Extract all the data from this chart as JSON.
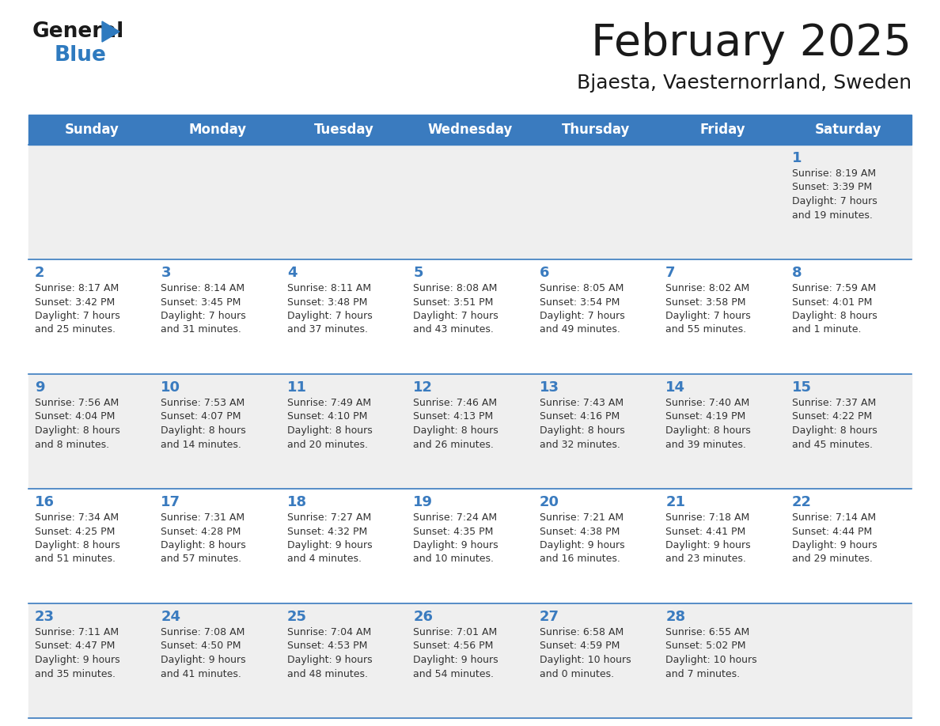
{
  "title": "February 2025",
  "subtitle": "Bjaesta, Vaesternorrland, Sweden",
  "days_of_week": [
    "Sunday",
    "Monday",
    "Tuesday",
    "Wednesday",
    "Thursday",
    "Friday",
    "Saturday"
  ],
  "header_bg": "#3a7bbf",
  "header_text": "#ffffff",
  "cell_bg_odd": "#efefef",
  "cell_bg_even": "#ffffff",
  "border_color": "#3a7bbf",
  "title_color": "#1a1a1a",
  "subtitle_color": "#1a1a1a",
  "day_text_color": "#3a7bbf",
  "cell_text_color": "#333333",
  "logo_general_color": "#1a1a1a",
  "logo_blue_color": "#2e7abf",
  "calendar_data": [
    {
      "day": 1,
      "week": 0,
      "col": 6,
      "sunrise": "8:19 AM",
      "sunset": "3:39 PM",
      "daylight_hours": 7,
      "daylight_minutes": 19
    },
    {
      "day": 2,
      "week": 1,
      "col": 0,
      "sunrise": "8:17 AM",
      "sunset": "3:42 PM",
      "daylight_hours": 7,
      "daylight_minutes": 25
    },
    {
      "day": 3,
      "week": 1,
      "col": 1,
      "sunrise": "8:14 AM",
      "sunset": "3:45 PM",
      "daylight_hours": 7,
      "daylight_minutes": 31
    },
    {
      "day": 4,
      "week": 1,
      "col": 2,
      "sunrise": "8:11 AM",
      "sunset": "3:48 PM",
      "daylight_hours": 7,
      "daylight_minutes": 37
    },
    {
      "day": 5,
      "week": 1,
      "col": 3,
      "sunrise": "8:08 AM",
      "sunset": "3:51 PM",
      "daylight_hours": 7,
      "daylight_minutes": 43
    },
    {
      "day": 6,
      "week": 1,
      "col": 4,
      "sunrise": "8:05 AM",
      "sunset": "3:54 PM",
      "daylight_hours": 7,
      "daylight_minutes": 49
    },
    {
      "day": 7,
      "week": 1,
      "col": 5,
      "sunrise": "8:02 AM",
      "sunset": "3:58 PM",
      "daylight_hours": 7,
      "daylight_minutes": 55
    },
    {
      "day": 8,
      "week": 1,
      "col": 6,
      "sunrise": "7:59 AM",
      "sunset": "4:01 PM",
      "daylight_hours": 8,
      "daylight_minutes": 1
    },
    {
      "day": 9,
      "week": 2,
      "col": 0,
      "sunrise": "7:56 AM",
      "sunset": "4:04 PM",
      "daylight_hours": 8,
      "daylight_minutes": 8
    },
    {
      "day": 10,
      "week": 2,
      "col": 1,
      "sunrise": "7:53 AM",
      "sunset": "4:07 PM",
      "daylight_hours": 8,
      "daylight_minutes": 14
    },
    {
      "day": 11,
      "week": 2,
      "col": 2,
      "sunrise": "7:49 AM",
      "sunset": "4:10 PM",
      "daylight_hours": 8,
      "daylight_minutes": 20
    },
    {
      "day": 12,
      "week": 2,
      "col": 3,
      "sunrise": "7:46 AM",
      "sunset": "4:13 PM",
      "daylight_hours": 8,
      "daylight_minutes": 26
    },
    {
      "day": 13,
      "week": 2,
      "col": 4,
      "sunrise": "7:43 AM",
      "sunset": "4:16 PM",
      "daylight_hours": 8,
      "daylight_minutes": 32
    },
    {
      "day": 14,
      "week": 2,
      "col": 5,
      "sunrise": "7:40 AM",
      "sunset": "4:19 PM",
      "daylight_hours": 8,
      "daylight_minutes": 39
    },
    {
      "day": 15,
      "week": 2,
      "col": 6,
      "sunrise": "7:37 AM",
      "sunset": "4:22 PM",
      "daylight_hours": 8,
      "daylight_minutes": 45
    },
    {
      "day": 16,
      "week": 3,
      "col": 0,
      "sunrise": "7:34 AM",
      "sunset": "4:25 PM",
      "daylight_hours": 8,
      "daylight_minutes": 51
    },
    {
      "day": 17,
      "week": 3,
      "col": 1,
      "sunrise": "7:31 AM",
      "sunset": "4:28 PM",
      "daylight_hours": 8,
      "daylight_minutes": 57
    },
    {
      "day": 18,
      "week": 3,
      "col": 2,
      "sunrise": "7:27 AM",
      "sunset": "4:32 PM",
      "daylight_hours": 9,
      "daylight_minutes": 4
    },
    {
      "day": 19,
      "week": 3,
      "col": 3,
      "sunrise": "7:24 AM",
      "sunset": "4:35 PM",
      "daylight_hours": 9,
      "daylight_minutes": 10
    },
    {
      "day": 20,
      "week": 3,
      "col": 4,
      "sunrise": "7:21 AM",
      "sunset": "4:38 PM",
      "daylight_hours": 9,
      "daylight_minutes": 16
    },
    {
      "day": 21,
      "week": 3,
      "col": 5,
      "sunrise": "7:18 AM",
      "sunset": "4:41 PM",
      "daylight_hours": 9,
      "daylight_minutes": 23
    },
    {
      "day": 22,
      "week": 3,
      "col": 6,
      "sunrise": "7:14 AM",
      "sunset": "4:44 PM",
      "daylight_hours": 9,
      "daylight_minutes": 29
    },
    {
      "day": 23,
      "week": 4,
      "col": 0,
      "sunrise": "7:11 AM",
      "sunset": "4:47 PM",
      "daylight_hours": 9,
      "daylight_minutes": 35
    },
    {
      "day": 24,
      "week": 4,
      "col": 1,
      "sunrise": "7:08 AM",
      "sunset": "4:50 PM",
      "daylight_hours": 9,
      "daylight_minutes": 41
    },
    {
      "day": 25,
      "week": 4,
      "col": 2,
      "sunrise": "7:04 AM",
      "sunset": "4:53 PM",
      "daylight_hours": 9,
      "daylight_minutes": 48
    },
    {
      "day": 26,
      "week": 4,
      "col": 3,
      "sunrise": "7:01 AM",
      "sunset": "4:56 PM",
      "daylight_hours": 9,
      "daylight_minutes": 54
    },
    {
      "day": 27,
      "week": 4,
      "col": 4,
      "sunrise": "6:58 AM",
      "sunset": "4:59 PM",
      "daylight_hours": 10,
      "daylight_minutes": 0
    },
    {
      "day": 28,
      "week": 4,
      "col": 5,
      "sunrise": "6:55 AM",
      "sunset": "5:02 PM",
      "daylight_hours": 10,
      "daylight_minutes": 7
    }
  ]
}
